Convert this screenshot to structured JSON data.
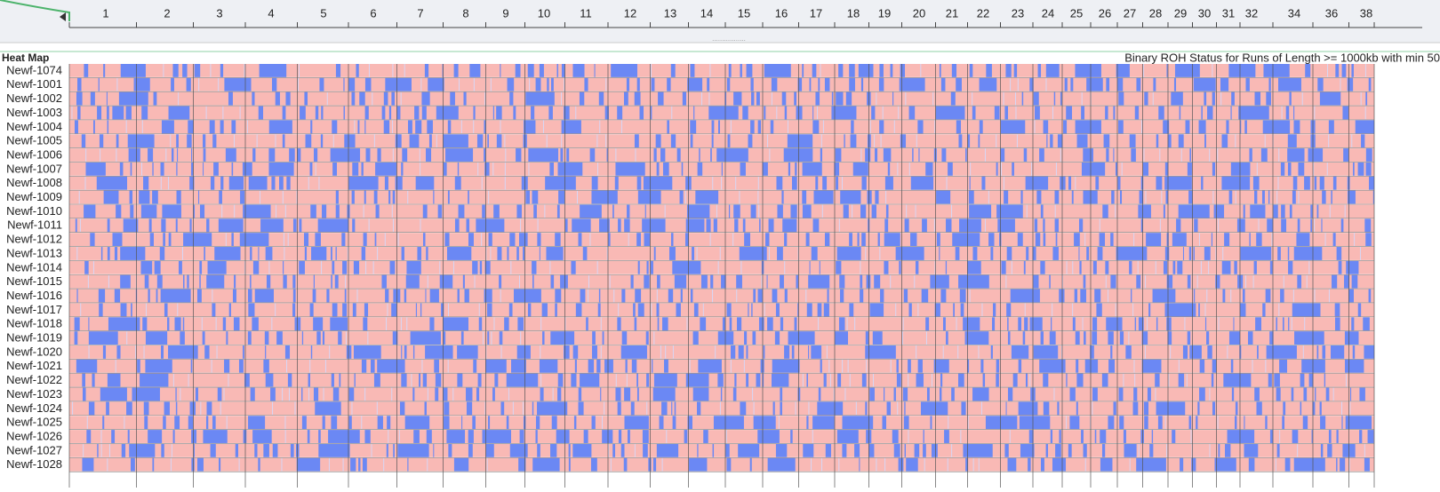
{
  "ruler": {
    "labels": [
      "1",
      "2",
      "3",
      "4",
      "5",
      "6",
      "7",
      "8",
      "9",
      "10",
      "11",
      "12",
      "13",
      "14",
      "15",
      "16",
      "17",
      "18",
      "19",
      "20",
      "21",
      "22",
      "23",
      "24",
      "25",
      "26",
      "27",
      "28",
      "29",
      "30",
      "31",
      "32",
      "34",
      "36",
      "38"
    ]
  },
  "panel": {
    "title": "Heat Map",
    "subtitle": "Binary ROH Status for Runs of Length >= 1000kb with min 50"
  },
  "rows": [
    "Newf-1074",
    "Newf-1001",
    "Newf-1002",
    "Newf-1003",
    "Newf-1004",
    "Newf-1005",
    "Newf-1006",
    "Newf-1007",
    "Newf-1008",
    "Newf-1009",
    "Newf-1010",
    "Newf-1011",
    "Newf-1012",
    "Newf-1013",
    "Newf-1014",
    "Newf-1015",
    "Newf-1016",
    "Newf-1017",
    "Newf-1018",
    "Newf-1019",
    "Newf-1020",
    "Newf-1021",
    "Newf-1022",
    "Newf-1023",
    "Newf-1024",
    "Newf-1025",
    "Newf-1026",
    "Newf-1027",
    "Newf-1028"
  ]
}
